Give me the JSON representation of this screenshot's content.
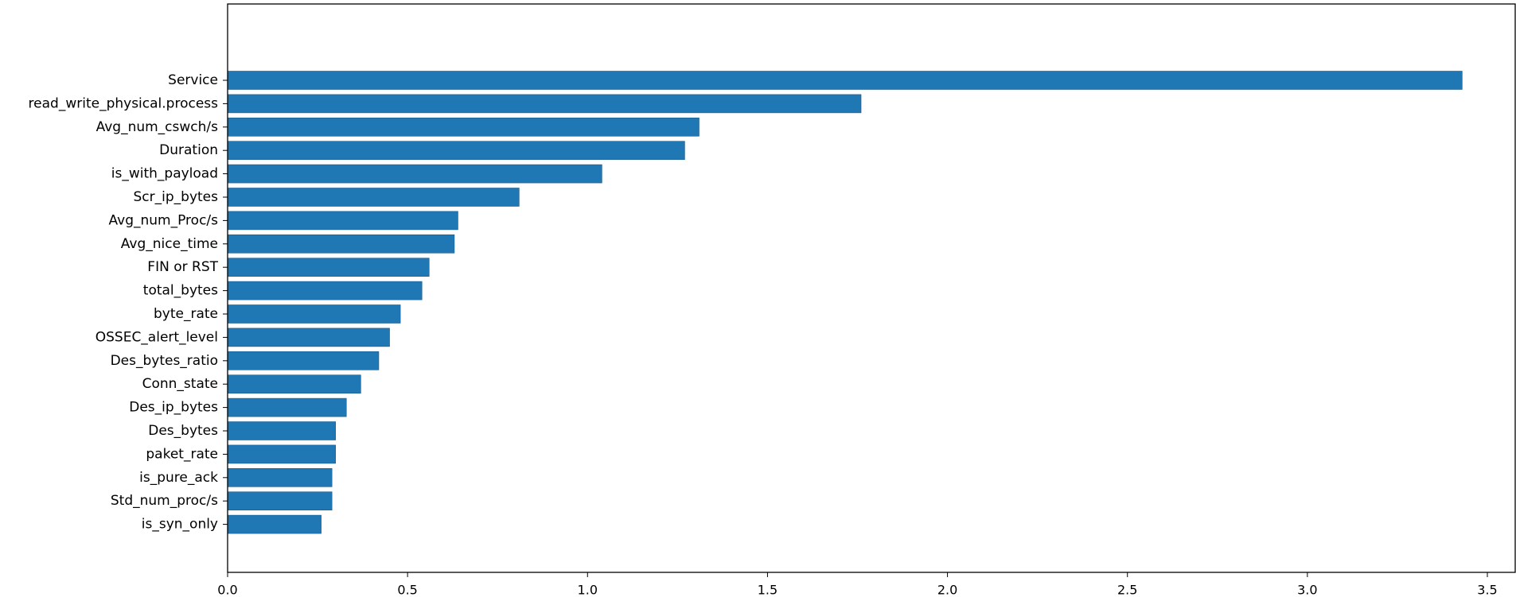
{
  "chart_data": {
    "type": "bar",
    "orientation": "horizontal",
    "title": "",
    "xlabel": "",
    "ylabel": "",
    "categories": [
      "Service",
      "read_write_physical.process",
      "Avg_num_cswch/s",
      "Duration",
      "is_with_payload",
      "Scr_ip_bytes",
      "Avg_num_Proc/s",
      "Avg_nice_time",
      "FIN or RST",
      "total_bytes",
      "byte_rate",
      "OSSEC_alert_level",
      "Des_bytes_ratio",
      "Conn_state",
      "Des_ip_bytes",
      "Des_bytes",
      "paket_rate",
      "is_pure_ack",
      "Std_num_proc/s",
      "is_syn_only"
    ],
    "values": [
      3.43,
      1.76,
      1.31,
      1.27,
      1.04,
      0.81,
      0.64,
      0.63,
      0.56,
      0.54,
      0.48,
      0.45,
      0.42,
      0.37,
      0.33,
      0.3,
      0.3,
      0.29,
      0.29,
      0.26
    ],
    "xlim": [
      0,
      3.6
    ],
    "xticks": [
      0.0,
      0.5,
      1.0,
      1.5,
      2.0,
      2.5,
      3.0,
      3.5
    ],
    "xtick_labels": [
      "0.0",
      "0.5",
      "1.0",
      "1.5",
      "2.0",
      "2.5",
      "3.0",
      "3.5"
    ],
    "grid": false,
    "legend": "none",
    "bar_color": "#1f77b4",
    "bar_edge_color": "#1a5a8e"
  }
}
